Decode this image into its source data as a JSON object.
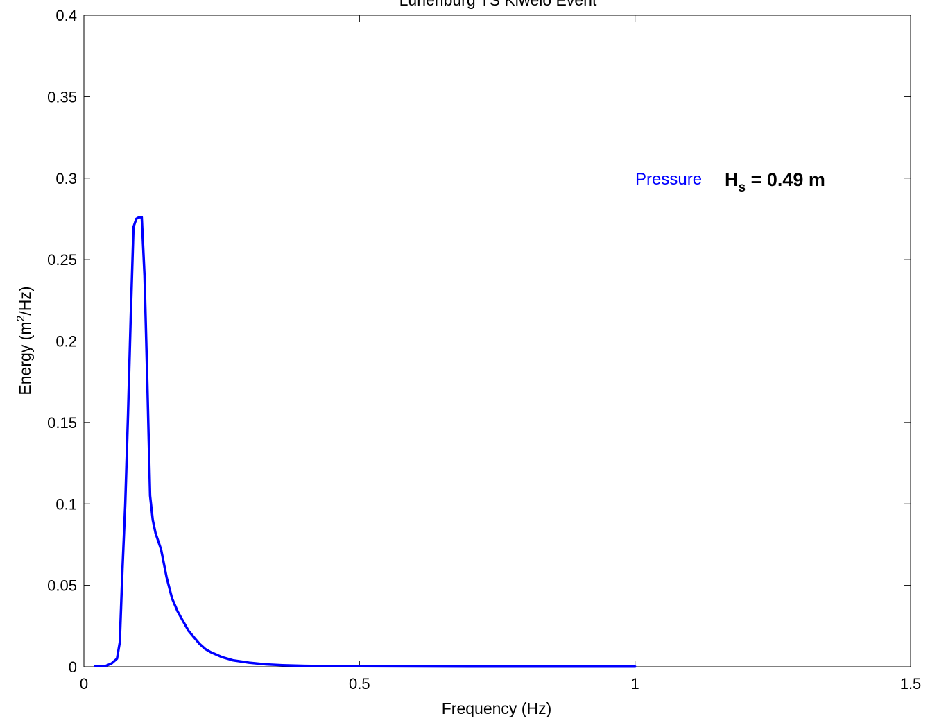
{
  "chart_data": {
    "type": "line",
    "title": "Lunenburg TS Kiwelo Event",
    "xlabel": "Frequency (Hz)",
    "ylabel_main": "Energy (m",
    "ylabel_sup": "2",
    "ylabel_end": "/Hz)",
    "xlim": [
      0,
      1.5
    ],
    "ylim": [
      0,
      0.4
    ],
    "xticks": [
      0,
      0.5,
      1,
      1.5
    ],
    "xtick_labels": [
      "0",
      "0.5",
      "1",
      "1.5"
    ],
    "yticks": [
      0,
      0.05,
      0.1,
      0.15,
      0.2,
      0.25,
      0.3,
      0.35,
      0.4
    ],
    "ytick_labels": [
      "0",
      "0.05",
      "0.1",
      "0.15",
      "0.2",
      "0.25",
      "0.3",
      "0.35",
      "0.4"
    ],
    "grid": false,
    "series": [
      {
        "name": "Pressure",
        "color": "#0000ff",
        "x": [
          0.02,
          0.03,
          0.04,
          0.05,
          0.06,
          0.065,
          0.07,
          0.075,
          0.08,
          0.085,
          0.09,
          0.095,
          0.1,
          0.105,
          0.11,
          0.115,
          0.12,
          0.125,
          0.13,
          0.135,
          0.14,
          0.15,
          0.16,
          0.17,
          0.18,
          0.19,
          0.2,
          0.21,
          0.22,
          0.23,
          0.25,
          0.27,
          0.3,
          0.33,
          0.36,
          0.4,
          0.45,
          0.5,
          0.6,
          0.7,
          0.8,
          0.9,
          1.0
        ],
        "y": [
          0.0005,
          0.0005,
          0.0006,
          0.002,
          0.005,
          0.015,
          0.06,
          0.1,
          0.155,
          0.215,
          0.27,
          0.275,
          0.276,
          0.276,
          0.24,
          0.175,
          0.105,
          0.09,
          0.082,
          0.077,
          0.072,
          0.055,
          0.042,
          0.034,
          0.028,
          0.022,
          0.018,
          0.014,
          0.011,
          0.009,
          0.006,
          0.004,
          0.0025,
          0.0015,
          0.001,
          0.0006,
          0.0004,
          0.0003,
          0.0002,
          0.0001,
          0.0001,
          0.0001,
          0.0001
        ]
      }
    ],
    "annotation_series_label": "Pressure",
    "annotation_hs_main": "H",
    "annotation_hs_sub": "s",
    "annotation_hs_value": " = 0.49 m"
  }
}
